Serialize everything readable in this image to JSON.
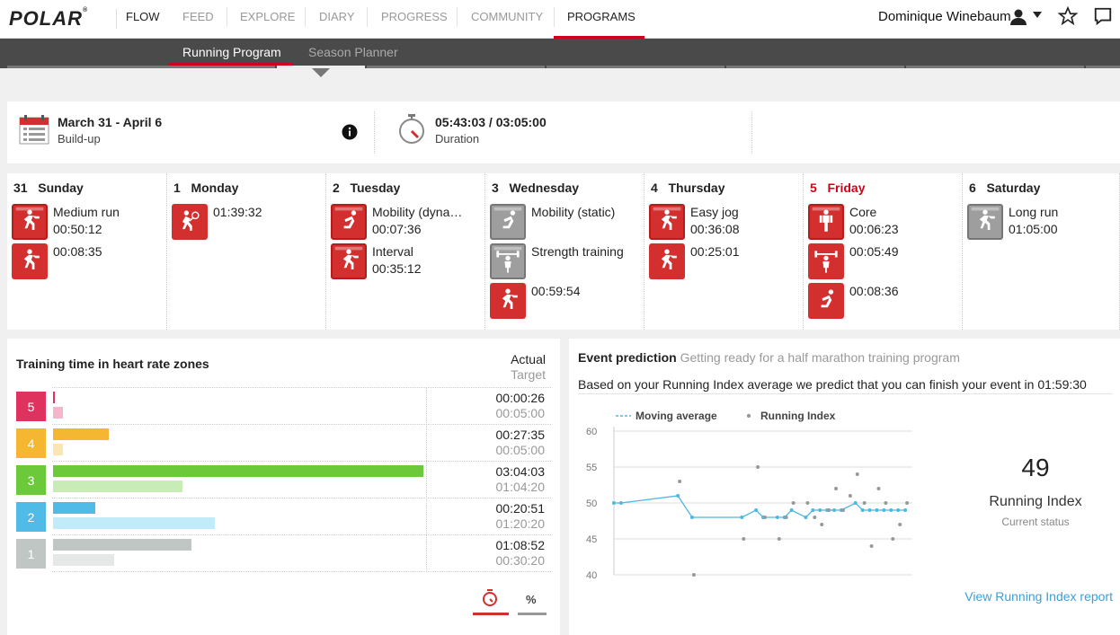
{
  "nav": {
    "logo": "POLAR",
    "logo_mark": "®",
    "flow": "FLOW",
    "items": [
      "FEED",
      "EXPLORE",
      "DIARY",
      "PROGRESS",
      "COMMUNITY",
      "PROGRAMS"
    ],
    "user_first": "Dominique",
    "user_last": "Winebaum"
  },
  "subnav": {
    "tabs": [
      "Running Program",
      "Season Planner"
    ]
  },
  "summary": {
    "week_title": "March 31 - April 6",
    "week_phase": "Build-up",
    "duration_value": "05:43:03 / 03:05:00",
    "duration_label": "Duration"
  },
  "days": [
    {
      "date": "31",
      "name": "Sunday",
      "activities": [
        {
          "icon": "run-icon",
          "color": "red",
          "flagged": true,
          "name": "Medium run",
          "time": "00:50:12"
        },
        {
          "icon": "run-icon",
          "color": "red",
          "flagged": false,
          "name": "",
          "time": "00:08:35"
        }
      ]
    },
    {
      "date": "1",
      "name": "Monday",
      "activities": [
        {
          "icon": "tennis-icon",
          "color": "red",
          "flagged": false,
          "name": "",
          "time": "01:39:32"
        }
      ]
    },
    {
      "date": "2",
      "name": "Tuesday",
      "activities": [
        {
          "icon": "mobility-icon",
          "color": "red",
          "flagged": true,
          "name": "Mobility (dyna…",
          "time": "00:07:36"
        },
        {
          "icon": "run-icon",
          "color": "red",
          "flagged": true,
          "name": "Interval",
          "time": "00:35:12"
        }
      ]
    },
    {
      "date": "3",
      "name": "Wednesday",
      "activities": [
        {
          "icon": "mobility-icon",
          "color": "grey",
          "flagged": true,
          "name": "Mobility (static)",
          "time": ""
        },
        {
          "icon": "strength-icon",
          "color": "grey",
          "flagged": true,
          "name": "Strength training",
          "time": ""
        },
        {
          "icon": "run-icon",
          "color": "red",
          "flagged": false,
          "name": "",
          "time": "00:59:54"
        }
      ]
    },
    {
      "date": "4",
      "name": "Thursday",
      "activities": [
        {
          "icon": "run-icon",
          "color": "red",
          "flagged": true,
          "name": "Easy jog",
          "time": "00:36:08"
        },
        {
          "icon": "run-icon",
          "color": "red",
          "flagged": false,
          "name": "",
          "time": "00:25:01"
        }
      ]
    },
    {
      "date": "5",
      "name": "Friday",
      "activities": [
        {
          "icon": "core-icon",
          "color": "red",
          "flagged": true,
          "name": "Core",
          "time": "00:06:23"
        },
        {
          "icon": "strength-icon",
          "color": "red",
          "flagged": false,
          "name": "",
          "time": "00:05:49"
        },
        {
          "icon": "mobility-icon",
          "color": "red",
          "flagged": false,
          "name": "",
          "time": "00:08:36"
        }
      ]
    },
    {
      "date": "6",
      "name": "Saturday",
      "activities": [
        {
          "icon": "run-icon",
          "color": "grey",
          "flagged": true,
          "name": "Long run",
          "time": "01:05:00"
        }
      ]
    }
  ],
  "zones": {
    "title": "Training time in heart rate zones",
    "actual_label": "Actual",
    "target_label": "Target",
    "rows": [
      {
        "zone": "5",
        "color": "#e0325f",
        "light": "#f4b6c8",
        "actual": "00:00:26",
        "target": "00:05:00",
        "actual_frac": 0.005,
        "target_frac": 0.026
      },
      {
        "zone": "4",
        "color": "#f5b731",
        "light": "#fbe6b3",
        "actual": "00:27:35",
        "target": "00:05:00",
        "actual_frac": 0.15,
        "target_frac": 0.026
      },
      {
        "zone": "3",
        "color": "#6cc93a",
        "light": "#c8ecb6",
        "actual": "03:04:03",
        "target": "01:04:20",
        "actual_frac": 1.0,
        "target_frac": 0.35
      },
      {
        "zone": "2",
        "color": "#4fbbe6",
        "light": "#c2ebf9",
        "actual": "00:20:51",
        "target": "01:20:20",
        "actual_frac": 0.114,
        "target_frac": 0.437
      },
      {
        "zone": "1",
        "color": "#c0c6c4",
        "light": "#e6e8e7",
        "actual": "01:08:52",
        "target": "00:30:20",
        "actual_frac": 0.374,
        "target_frac": 0.165
      }
    ],
    "toggle_percent": "%"
  },
  "prediction": {
    "title": "Event prediction",
    "subtitle": "Getting ready for a half marathon training program",
    "text": "Based on your Running Index average we predict that you can finish your event in 01:59:30",
    "index_value": "49",
    "index_label": "Running Index",
    "index_status": "Current status",
    "report_link": "View Running Index report"
  },
  "chart_data": {
    "type": "line",
    "legend": [
      "Moving average",
      "Running Index"
    ],
    "yticks": [
      "60",
      "55",
      "50",
      "45",
      "40"
    ],
    "ylim": [
      40,
      60
    ],
    "series": [
      {
        "name": "Moving average",
        "x": [
          0,
          1,
          9,
          11,
          18,
          20,
          21,
          23,
          24,
          25,
          27,
          28,
          29,
          30,
          31,
          32,
          34,
          35,
          36,
          37,
          38,
          39,
          40,
          41
        ],
        "values": [
          50,
          50,
          51,
          48,
          48,
          49,
          48,
          48,
          48,
          49,
          48,
          49,
          49,
          49,
          49,
          49,
          50,
          49,
          49,
          49,
          49,
          49,
          49,
          49
        ]
      },
      {
        "name": "Running Index",
        "x": [
          9,
          11,
          18,
          20,
          21,
          23,
          24,
          25,
          27,
          28,
          29,
          30,
          31,
          32,
          33,
          34,
          35,
          36,
          37,
          38,
          39,
          40,
          41
        ],
        "values": [
          53,
          40,
          45,
          55,
          48,
          45,
          48,
          50,
          50,
          48,
          47,
          49,
          52,
          49,
          51,
          54,
          50,
          44,
          52,
          50,
          45,
          47,
          50
        ]
      }
    ],
    "xcount": 42
  },
  "colors": {
    "accent": "#d0021b",
    "chart_line": "#4db8e0",
    "chart_dot": "#999999"
  }
}
